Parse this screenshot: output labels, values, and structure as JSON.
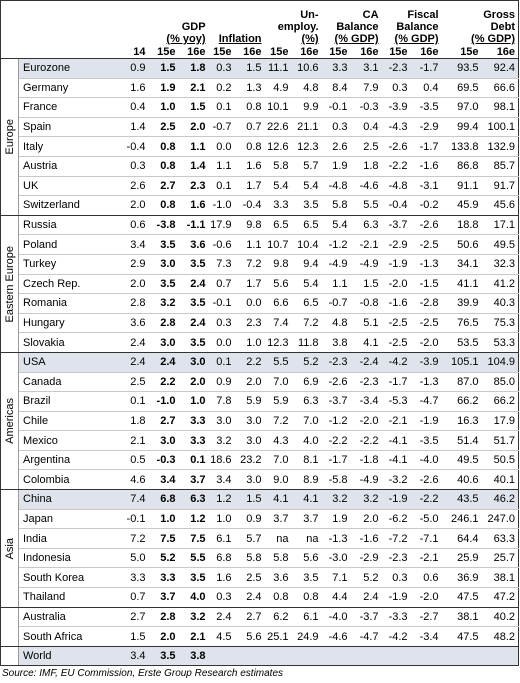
{
  "header": {
    "columns": [
      {
        "lines": [
          "GDP",
          "(% yoy)"
        ],
        "sub": [
          "14",
          "15e",
          "16e"
        ]
      },
      {
        "lines": [
          "Inflation"
        ],
        "sub": [
          "15e",
          "16e"
        ]
      },
      {
        "lines": [
          "Un-",
          "employ.",
          "(%)"
        ],
        "sub": [
          "15e",
          "16e"
        ]
      },
      {
        "lines": [
          "CA",
          "Balance",
          "(% GDP)"
        ],
        "sub": [
          "15e",
          "16e"
        ]
      },
      {
        "lines": [
          "Fiscal",
          "Balance",
          "(% GDP)"
        ],
        "sub": [
          "15e",
          "16e"
        ]
      },
      {
        "lines": [
          "Gross",
          "Debt",
          "(% GDP)"
        ],
        "sub": [
          "15e",
          "16e"
        ]
      }
    ]
  },
  "sections": [
    {
      "name": "Europe",
      "rows": [
        {
          "country": "Eurozone",
          "shaded": true,
          "values": [
            "0.9",
            "1.5",
            "1.8",
            "0.3",
            "1.5",
            "11.1",
            "10.6",
            "3.3",
            "3.1",
            "-2.3",
            "-1.7",
            "93.5",
            "92.4"
          ]
        },
        {
          "country": "Germany",
          "values": [
            "1.6",
            "1.9",
            "2.1",
            "0.2",
            "1.3",
            "4.9",
            "4.8",
            "8.4",
            "7.9",
            "0.3",
            "0.4",
            "69.5",
            "66.6"
          ]
        },
        {
          "country": "France",
          "values": [
            "0.4",
            "1.0",
            "1.5",
            "0.1",
            "0.8",
            "10.1",
            "9.9",
            "-0.1",
            "-0.3",
            "-3.9",
            "-3.5",
            "97.0",
            "98.1"
          ]
        },
        {
          "country": "Spain",
          "values": [
            "1.4",
            "2.5",
            "2.0",
            "-0.7",
            "0.7",
            "22.6",
            "21.1",
            "0.3",
            "0.4",
            "-4.3",
            "-2.9",
            "99.4",
            "100.1"
          ]
        },
        {
          "country": "Italy",
          "values": [
            "-0.4",
            "0.8",
            "1.1",
            "0.0",
            "0.8",
            "12.6",
            "12.3",
            "2.6",
            "2.5",
            "-2.6",
            "-1.7",
            "133.8",
            "132.9"
          ]
        },
        {
          "country": "Austria",
          "values": [
            "0.3",
            "0.8",
            "1.4",
            "1.1",
            "1.6",
            "5.8",
            "5.7",
            "1.9",
            "1.8",
            "-2.2",
            "-1.6",
            "86.8",
            "85.7"
          ]
        },
        {
          "country": "UK",
          "values": [
            "2.6",
            "2.7",
            "2.3",
            "0.1",
            "1.7",
            "5.4",
            "5.4",
            "-4.8",
            "-4.6",
            "-4.8",
            "-3.1",
            "91.1",
            "91.7"
          ]
        },
        {
          "country": "Switzerland",
          "values": [
            "2.0",
            "0.8",
            "1.6",
            "-1.0",
            "-0.4",
            "3.3",
            "3.5",
            "5.8",
            "5.5",
            "-0.4",
            "-0.2",
            "45.9",
            "45.6"
          ]
        }
      ]
    },
    {
      "name": "Eastern Europe",
      "rows": [
        {
          "country": "Russia",
          "values": [
            "0.6",
            "-3.8",
            "-1.1",
            "17.9",
            "9.8",
            "6.5",
            "6.5",
            "5.4",
            "6.3",
            "-3.7",
            "-2.6",
            "18.8",
            "17.1"
          ]
        },
        {
          "country": "Poland",
          "values": [
            "3.4",
            "3.5",
            "3.6",
            "-0.6",
            "1.1",
            "10.7",
            "10.4",
            "-1.2",
            "-2.1",
            "-2.9",
            "-2.5",
            "50.6",
            "49.5"
          ]
        },
        {
          "country": "Turkey",
          "values": [
            "2.9",
            "3.0",
            "3.5",
            "7.3",
            "7.2",
            "9.8",
            "9.4",
            "-4.9",
            "-4.9",
            "-1.9",
            "-1.3",
            "34.1",
            "32.3"
          ]
        },
        {
          "country": "Czech Rep.",
          "values": [
            "2.0",
            "3.5",
            "2.4",
            "0.7",
            "1.7",
            "5.6",
            "5.4",
            "1.1",
            "1.5",
            "-2.0",
            "-1.5",
            "41.1",
            "41.2"
          ]
        },
        {
          "country": "Romania",
          "values": [
            "2.8",
            "3.2",
            "3.5",
            "-0.1",
            "0.0",
            "6.6",
            "6.5",
            "-0.7",
            "-0.8",
            "-1.6",
            "-2.8",
            "39.9",
            "40.3"
          ]
        },
        {
          "country": "Hungary",
          "values": [
            "3.6",
            "2.8",
            "2.4",
            "0.3",
            "2.3",
            "7.4",
            "7.2",
            "4.8",
            "5.1",
            "-2.5",
            "-2.5",
            "76.5",
            "75.3"
          ]
        },
        {
          "country": "Slovakia",
          "values": [
            "2.4",
            "3.0",
            "3.5",
            "0.0",
            "1.0",
            "12.3",
            "11.8",
            "3.8",
            "4.1",
            "-2.5",
            "-2.0",
            "53.5",
            "53.3"
          ]
        }
      ]
    },
    {
      "name": "Americas",
      "rows": [
        {
          "country": "USA",
          "shaded": true,
          "values": [
            "2.4",
            "2.4",
            "3.0",
            "0.1",
            "2.2",
            "5.5",
            "5.2",
            "-2.3",
            "-2.4",
            "-4.2",
            "-3.9",
            "105.1",
            "104.9"
          ]
        },
        {
          "country": "Canada",
          "values": [
            "2.5",
            "2.2",
            "2.0",
            "0.9",
            "2.0",
            "7.0",
            "6.9",
            "-2.6",
            "-2.3",
            "-1.7",
            "-1.3",
            "87.0",
            "85.0"
          ]
        },
        {
          "country": "Brazil",
          "values": [
            "0.1",
            "-1.0",
            "1.0",
            "7.8",
            "5.9",
            "5.9",
            "6.3",
            "-3.7",
            "-3.4",
            "-5.3",
            "-4.7",
            "66.2",
            "66.2"
          ]
        },
        {
          "country": "Chile",
          "values": [
            "1.8",
            "2.7",
            "3.3",
            "3.0",
            "3.0",
            "7.2",
            "7.0",
            "-1.2",
            "-2.0",
            "-2.1",
            "-1.9",
            "16.3",
            "17.9"
          ]
        },
        {
          "country": "Mexico",
          "values": [
            "2.1",
            "3.0",
            "3.3",
            "3.2",
            "3.0",
            "4.3",
            "4.0",
            "-2.2",
            "-2.2",
            "-4.1",
            "-3.5",
            "51.4",
            "51.7"
          ]
        },
        {
          "country": "Argentina",
          "values": [
            "0.5",
            "-0.3",
            "0.1",
            "18.6",
            "23.2",
            "7.0",
            "8.1",
            "-1.7",
            "-1.8",
            "-4.1",
            "-4.0",
            "49.5",
            "50.5"
          ]
        },
        {
          "country": "Colombia",
          "values": [
            "4.6",
            "3.4",
            "3.7",
            "3.4",
            "3.0",
            "9.0",
            "8.9",
            "-5.8",
            "-4.9",
            "-3.2",
            "-2.6",
            "40.6",
            "40.1"
          ]
        }
      ]
    },
    {
      "name": "Asia",
      "rows": [
        {
          "country": "China",
          "shaded": true,
          "values": [
            "7.4",
            "6.8",
            "6.3",
            "1.2",
            "1.5",
            "4.1",
            "4.1",
            "3.2",
            "3.2",
            "-1.9",
            "-2.2",
            "43.5",
            "46.2"
          ]
        },
        {
          "country": "Japan",
          "values": [
            "-0.1",
            "1.0",
            "1.2",
            "1.0",
            "0.9",
            "3.7",
            "3.7",
            "1.9",
            "2.0",
            "-6.2",
            "-5.0",
            "246.1",
            "247.0"
          ]
        },
        {
          "country": "India",
          "values": [
            "7.2",
            "7.5",
            "7.5",
            "6.1",
            "5.7",
            "na",
            "na",
            "-1.3",
            "-1.6",
            "-7.2",
            "-7.1",
            "64.4",
            "63.3"
          ]
        },
        {
          "country": "Indonesia",
          "values": [
            "5.0",
            "5.2",
            "5.5",
            "6.8",
            "5.8",
            "5.8",
            "5.6",
            "-3.0",
            "-2.9",
            "-2.3",
            "-2.1",
            "25.9",
            "25.7"
          ]
        },
        {
          "country": "South Korea",
          "values": [
            "3.3",
            "3.3",
            "3.5",
            "1.6",
            "2.5",
            "3.6",
            "3.5",
            "7.1",
            "5.2",
            "0.3",
            "0.6",
            "36.9",
            "38.1"
          ]
        },
        {
          "country": "Thailand",
          "values": [
            "0.7",
            "3.7",
            "4.0",
            "0.3",
            "2.4",
            "0.8",
            "0.8",
            "4.4",
            "2.4",
            "-1.9",
            "-2.0",
            "47.5",
            "47.2"
          ]
        }
      ]
    },
    {
      "rows": [
        {
          "country": "Australia",
          "values": [
            "2.7",
            "2.8",
            "3.2",
            "2.4",
            "2.7",
            "6.2",
            "6.1",
            "-4.0",
            "-3.7",
            "-3.3",
            "-2.7",
            "38.1",
            "40.2"
          ]
        },
        {
          "country": "South Africa",
          "values": [
            "1.5",
            "2.0",
            "2.1",
            "4.5",
            "5.6",
            "25.1",
            "24.9",
            "-4.6",
            "-4.7",
            "-4.2",
            "-3.4",
            "47.5",
            "48.2"
          ]
        }
      ]
    },
    {
      "rows": [
        {
          "country": "World",
          "shaded": true,
          "values": [
            "3.4",
            "3.5",
            "3.8"
          ]
        }
      ]
    }
  ],
  "source": "Source: IMF, EU Commission, Erste Group Research estimates"
}
